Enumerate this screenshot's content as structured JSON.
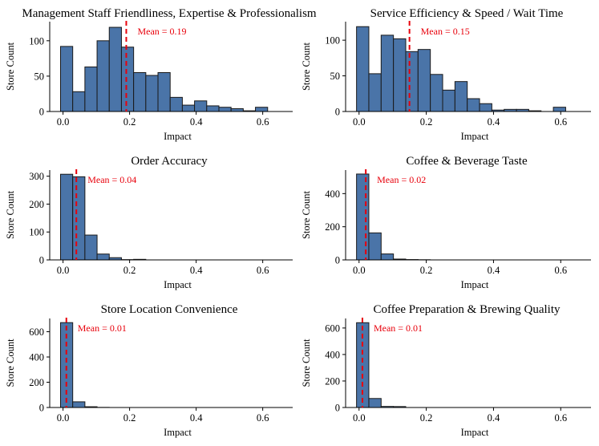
{
  "chart_data": [
    {
      "type": "bar",
      "title": "Management Staff Friendliness, Expertise & Professionalism",
      "xlabel": "Impact",
      "ylabel": "Store Count",
      "bin_width": 0.0366,
      "bin_start": -0.0075,
      "values": [
        92,
        28,
        63,
        100,
        119,
        91,
        55,
        51,
        55,
        20,
        9,
        15,
        8,
        6,
        4,
        1,
        6
      ],
      "mean": 0.19,
      "mean_label": "Mean = 0.19",
      "xlim": [
        -0.04,
        0.69
      ],
      "ylim": [
        0,
        127
      ],
      "xticks": [
        0.0,
        0.2,
        0.4,
        0.6
      ],
      "xtick_labels": [
        "0.0",
        "0.2",
        "0.4",
        "0.6"
      ],
      "yticks": [
        0,
        50,
        100
      ],
      "ytick_labels": [
        "0",
        "50",
        "100"
      ]
    },
    {
      "type": "bar",
      "title": "Service Efficiency & Speed / Wait Time",
      "xlabel": "Impact",
      "ylabel": "Store Count",
      "bin_width": 0.0366,
      "bin_start": -0.0075,
      "values": [
        119,
        53,
        107,
        102,
        84,
        87,
        52,
        30,
        42,
        18,
        11,
        2,
        3,
        3,
        1,
        0,
        6
      ],
      "mean": 0.15,
      "mean_label": "Mean = 0.15",
      "xlim": [
        -0.04,
        0.69
      ],
      "ylim": [
        0,
        126
      ],
      "xticks": [
        0.0,
        0.2,
        0.4,
        0.6
      ],
      "xtick_labels": [
        "0.0",
        "0.2",
        "0.4",
        "0.6"
      ],
      "yticks": [
        0,
        50,
        100
      ],
      "ytick_labels": [
        "0",
        "50",
        "100"
      ]
    },
    {
      "type": "bar",
      "title": "Order Accuracy",
      "xlabel": "Impact",
      "ylabel": "Store Count",
      "bin_width": 0.0366,
      "bin_start": -0.0075,
      "values": [
        307,
        298,
        89,
        21,
        8,
        1,
        2,
        0,
        0,
        0,
        0,
        0,
        0,
        0,
        0,
        0,
        0
      ],
      "mean": 0.04,
      "mean_label": "Mean = 0.04",
      "xlim": [
        -0.04,
        0.69
      ],
      "ylim": [
        0,
        322
      ],
      "xticks": [
        0.0,
        0.2,
        0.4,
        0.6
      ],
      "xtick_labels": [
        "0.0",
        "0.2",
        "0.4",
        "0.6"
      ],
      "yticks": [
        0,
        100,
        200,
        300
      ],
      "ytick_labels": [
        "0",
        "100",
        "200",
        "300"
      ]
    },
    {
      "type": "bar",
      "title": "Coffee & Beverage Taste",
      "xlabel": "Impact",
      "ylabel": "Store Count",
      "bin_width": 0.0366,
      "bin_start": -0.0075,
      "values": [
        518,
        163,
        36,
        5,
        2,
        1,
        0,
        0,
        0,
        0,
        0,
        0,
        0,
        0,
        0,
        0,
        0
      ],
      "mean": 0.02,
      "mean_label": "Mean = 0.02",
      "xlim": [
        -0.04,
        0.69
      ],
      "ylim": [
        0,
        542
      ],
      "xticks": [
        0.0,
        0.2,
        0.4,
        0.6
      ],
      "xtick_labels": [
        "0.0",
        "0.2",
        "0.4",
        "0.6"
      ],
      "yticks": [
        0,
        200,
        400
      ],
      "ytick_labels": [
        "0",
        "200",
        "400"
      ]
    },
    {
      "type": "bar",
      "title": "Store Location Convenience",
      "xlabel": "Impact",
      "ylabel": "Store Count",
      "bin_width": 0.0366,
      "bin_start": -0.0075,
      "values": [
        672,
        45,
        6,
        1,
        0,
        0,
        0,
        0,
        0,
        0,
        0,
        0,
        0,
        0,
        0,
        0,
        0
      ],
      "mean": 0.01,
      "mean_label": "Mean = 0.01",
      "xlim": [
        -0.04,
        0.69
      ],
      "ylim": [
        0,
        705
      ],
      "xticks": [
        0.0,
        0.2,
        0.4,
        0.6
      ],
      "xtick_labels": [
        "0.0",
        "0.2",
        "0.4",
        "0.6"
      ],
      "yticks": [
        0,
        200,
        400,
        600
      ],
      "ytick_labels": [
        "0",
        "200",
        "400",
        "600"
      ]
    },
    {
      "type": "bar",
      "title": "Coffee Preparation & Brewing Quality",
      "xlabel": "Impact",
      "ylabel": "Store Count",
      "bin_width": 0.0366,
      "bin_start": -0.0075,
      "values": [
        640,
        68,
        8,
        7,
        0,
        0,
        0,
        0,
        0,
        0,
        0,
        0,
        0,
        0,
        0,
        0,
        0
      ],
      "mean": 0.01,
      "mean_label": "Mean = 0.01",
      "xlim": [
        -0.04,
        0.69
      ],
      "ylim": [
        0,
        672
      ],
      "xticks": [
        0.0,
        0.2,
        0.4,
        0.6
      ],
      "xtick_labels": [
        "0.0",
        "0.2",
        "0.4",
        "0.6"
      ],
      "yticks": [
        0,
        200,
        400,
        600
      ],
      "ytick_labels": [
        "0",
        "200",
        "400",
        "600"
      ]
    }
  ],
  "colors": {
    "bar_fill": "#4a74a8",
    "bar_edge": "#1a1a1a",
    "mean_line": "#e8000b"
  }
}
